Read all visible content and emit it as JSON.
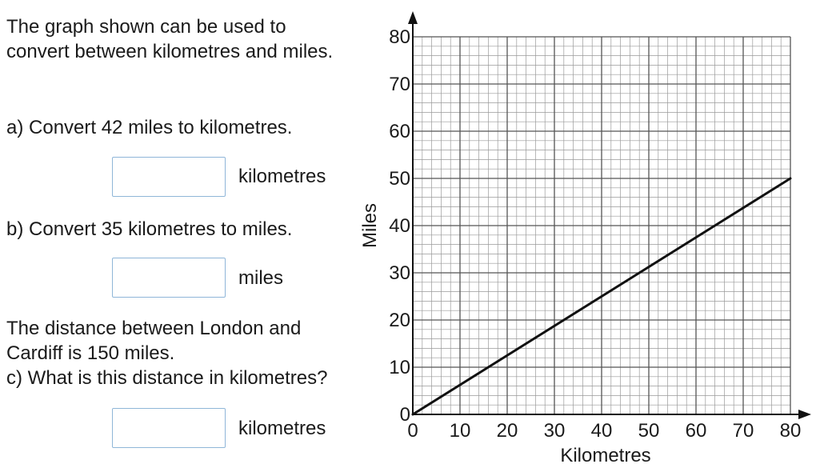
{
  "question": {
    "intro_line1": "The graph shown can be used to",
    "intro_line2": "convert between kilometres and miles.",
    "part_a": "a) Convert 42 miles to kilometres.",
    "part_a_unit": "kilometres",
    "part_b": "b) Convert 35 kilometres to miles.",
    "part_b_unit": "miles",
    "context_line1": "The distance between London and",
    "context_line2": "Cardiff is 150 miles.",
    "part_c": "c) What is this distance in kilometres?",
    "part_c_unit": "kilometres"
  },
  "answers": {
    "a": "",
    "b": "",
    "c": ""
  },
  "chart_data": {
    "type": "line",
    "xlabel": "Kilometres",
    "ylabel": "Miles",
    "xlim": [
      0,
      80
    ],
    "ylim": [
      0,
      80
    ],
    "x_ticks": [
      "0",
      "10",
      "20",
      "30",
      "40",
      "50",
      "60",
      "70",
      "80"
    ],
    "y_ticks": [
      "0",
      "10",
      "20",
      "30",
      "40",
      "50",
      "60",
      "70",
      "80"
    ],
    "grid": true,
    "minor_grid_step": 2,
    "series": [
      {
        "x": [
          0,
          80
        ],
        "y": [
          0,
          50
        ],
        "color": "#111111"
      }
    ]
  }
}
